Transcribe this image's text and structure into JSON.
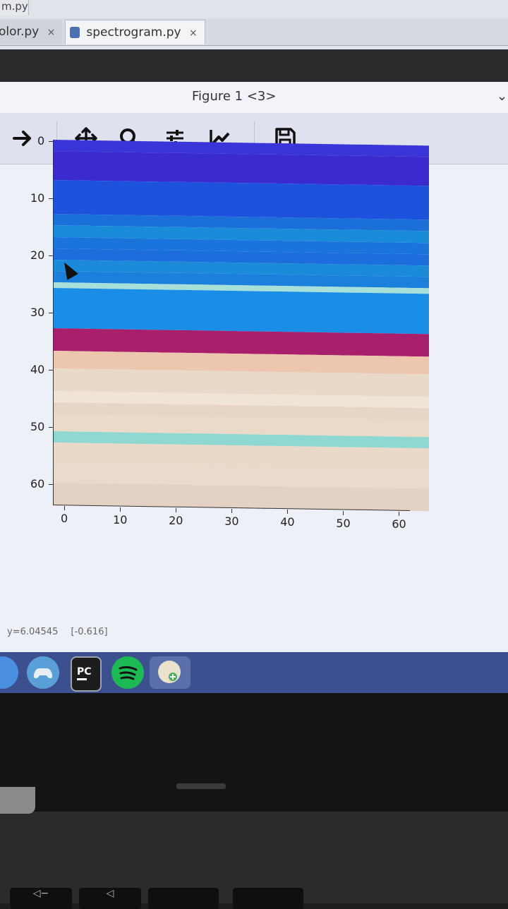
{
  "ide": {
    "breadcrumb": "m.py",
    "tabs": [
      {
        "label": "olor.py",
        "close": "×"
      },
      {
        "label": "spectrogram.py",
        "close": "×"
      }
    ]
  },
  "figure_window": {
    "title": "Figure 1 <3>",
    "chevron": "⌄",
    "toolbar": {
      "forward": "forward-arrow-icon",
      "pan": "pan-move-icon",
      "zoom": "zoom-magnifier-icon",
      "configure": "configure-subplots-icon",
      "edit": "edit-axis-icon",
      "save": "save-disk-icon"
    },
    "status": {
      "y": "y=6.04545",
      "value": "[-0.616]"
    }
  },
  "chart_data": {
    "type": "heatmap",
    "title": "",
    "xlabel": "",
    "ylabel": "",
    "xlim": [
      0,
      63
    ],
    "ylim": [
      63,
      0
    ],
    "x_ticks": [
      "0",
      "10",
      "20",
      "30",
      "40",
      "50",
      "60"
    ],
    "y_ticks": [
      "0",
      "10",
      "20",
      "30",
      "40",
      "50",
      "60"
    ],
    "rows": [
      {
        "from": 0,
        "to": 2,
        "color": "#3a35d8"
      },
      {
        "from": 2,
        "to": 7,
        "color": "#3b2bcf"
      },
      {
        "from": 7,
        "to": 13,
        "color": "#1c52dc"
      },
      {
        "from": 13,
        "to": 15,
        "color": "#1a6fd8"
      },
      {
        "from": 15,
        "to": 17,
        "color": "#198bd9"
      },
      {
        "from": 17,
        "to": 19,
        "color": "#1a74dc"
      },
      {
        "from": 19,
        "to": 21,
        "color": "#1b6edb"
      },
      {
        "from": 21,
        "to": 23,
        "color": "#1a8ad9"
      },
      {
        "from": 23,
        "to": 25,
        "color": "#1b7fdc"
      },
      {
        "from": 25,
        "to": 26,
        "color": "#a6e0d9"
      },
      {
        "from": 26,
        "to": 33,
        "color": "#1a8ee6"
      },
      {
        "from": 33,
        "to": 37,
        "color": "#a81f6b"
      },
      {
        "from": 37,
        "to": 40,
        "color": "#ecc7ad"
      },
      {
        "from": 40,
        "to": 44,
        "color": "#e9d9c9"
      },
      {
        "from": 44,
        "to": 46,
        "color": "#efe4d6"
      },
      {
        "from": 46,
        "to": 48,
        "color": "#e7d6c6"
      },
      {
        "from": 48,
        "to": 51,
        "color": "#ecdac8"
      },
      {
        "from": 51,
        "to": 53,
        "color": "#8fd8d1"
      },
      {
        "from": 53,
        "to": 57,
        "color": "#ead9c9"
      },
      {
        "from": 57,
        "to": 60,
        "color": "#e8dace"
      },
      {
        "from": 60,
        "to": 64,
        "color": "#e3d2c3"
      }
    ]
  },
  "taskbar": {
    "icons": [
      "chrome-icon",
      "game-controller-icon",
      "pycharm-icon",
      "spotify-icon",
      "python-installer-icon"
    ]
  }
}
